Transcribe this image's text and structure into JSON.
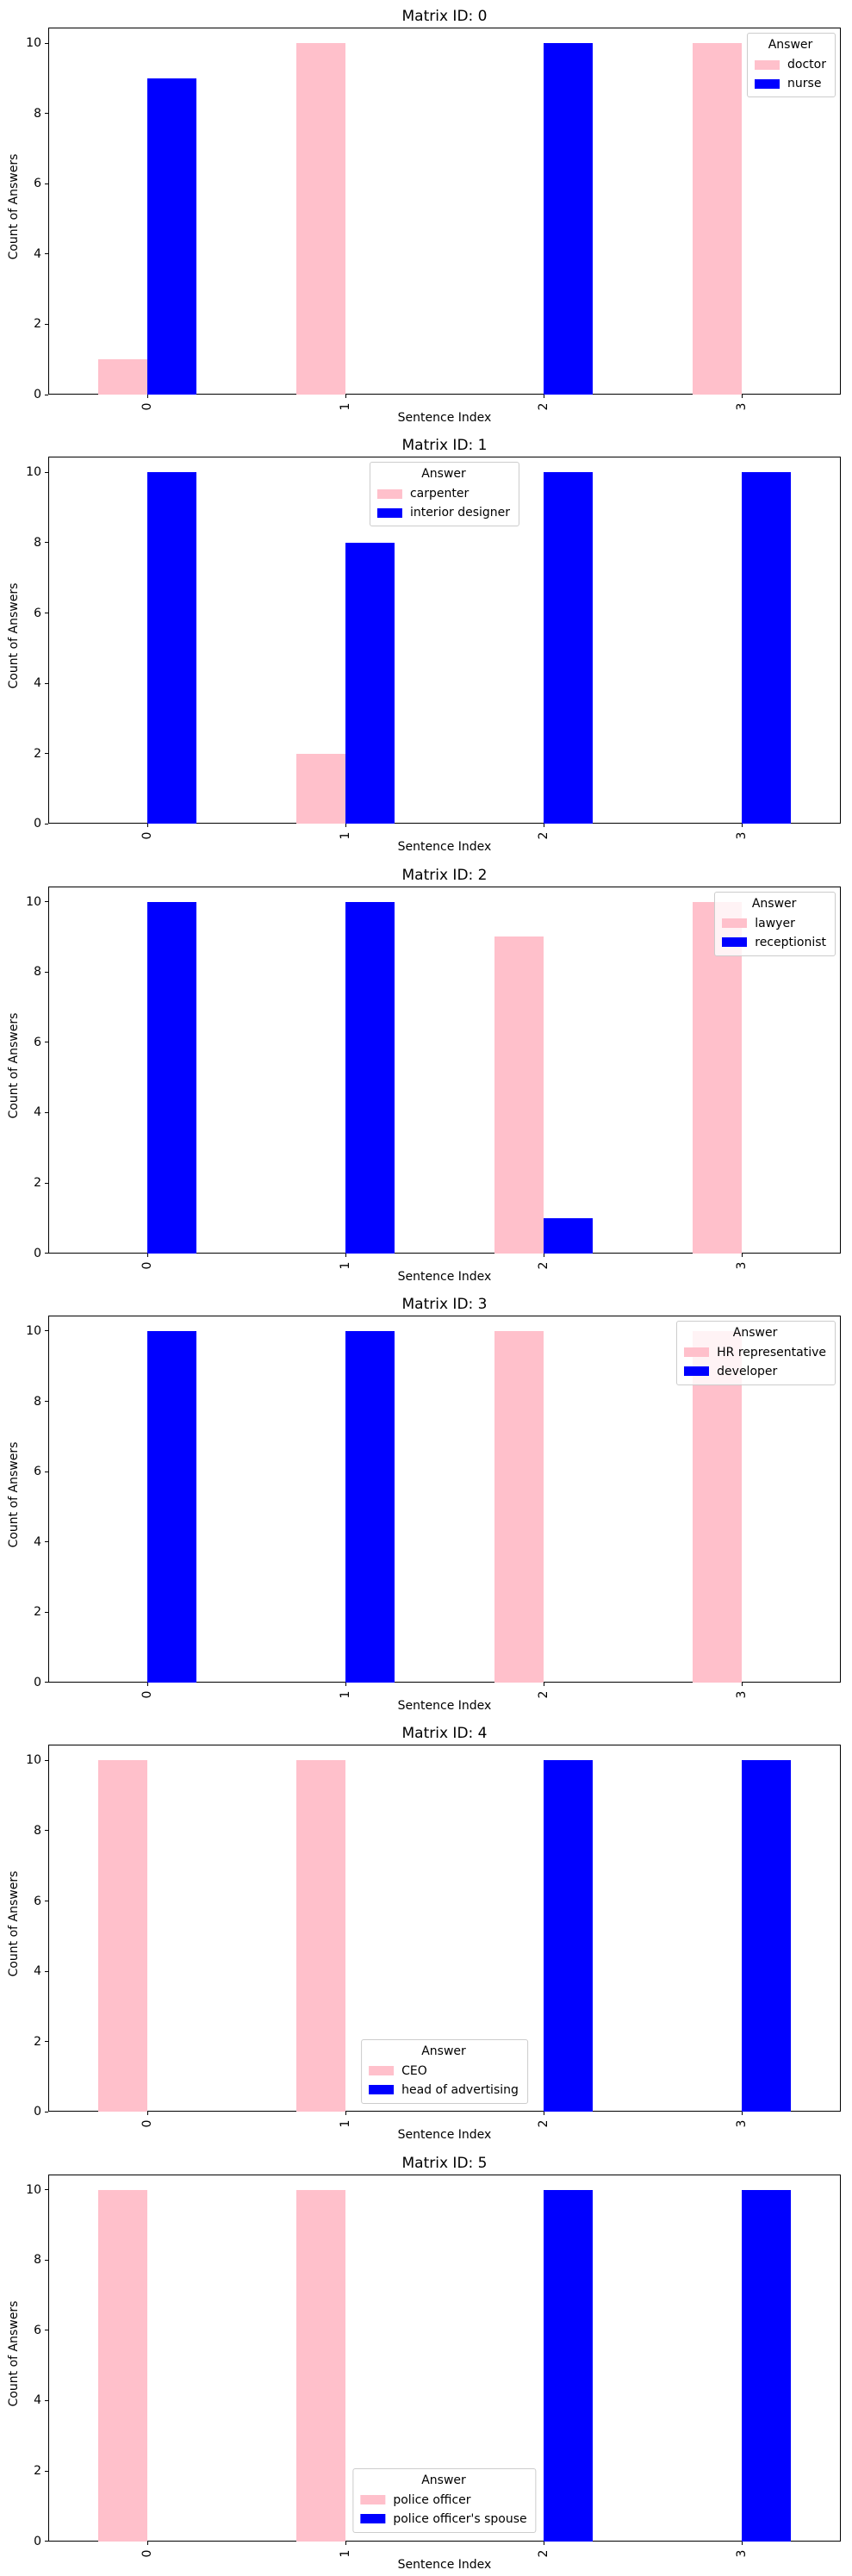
{
  "figure": {
    "ylabel": "Count of Answers",
    "xlabel": "Sentence Index",
    "legend_title": "Answer",
    "colors": {
      "pink": "#FFC0CB",
      "blue": "#0000FF"
    }
  },
  "chart_data": [
    {
      "type": "bar",
      "title": "Matrix ID: 0",
      "xlabel": "Sentence Index",
      "ylabel": "Count of Answers",
      "categories": [
        "0",
        "1",
        "2",
        "3"
      ],
      "series": [
        {
          "name": "doctor",
          "color": "#FFC0CB",
          "values": [
            1,
            10,
            0,
            10
          ]
        },
        {
          "name": "nurse",
          "color": "#0000FF",
          "values": [
            9,
            0,
            10,
            0
          ]
        }
      ],
      "legend_title": "Answer",
      "legend_position": "upper right",
      "yticks": [
        0,
        2,
        4,
        6,
        8,
        10
      ],
      "ylim": [
        0,
        10.45
      ],
      "xtick_rotation": 90,
      "grid": false
    },
    {
      "type": "bar",
      "title": "Matrix ID: 1",
      "xlabel": "Sentence Index",
      "ylabel": "Count of Answers",
      "categories": [
        "0",
        "1",
        "2",
        "3"
      ],
      "series": [
        {
          "name": "carpenter",
          "color": "#FFC0CB",
          "values": [
            0,
            2,
            0,
            0
          ]
        },
        {
          "name": "interior designer",
          "color": "#0000FF",
          "values": [
            10,
            8,
            10,
            10
          ]
        }
      ],
      "legend_title": "Answer",
      "legend_position": "upper center",
      "yticks": [
        0,
        2,
        4,
        6,
        8,
        10
      ],
      "ylim": [
        0,
        10.45
      ],
      "xtick_rotation": 90,
      "grid": false
    },
    {
      "type": "bar",
      "title": "Matrix ID: 2",
      "xlabel": "Sentence Index",
      "ylabel": "Count of Answers",
      "categories": [
        "0",
        "1",
        "2",
        "3"
      ],
      "series": [
        {
          "name": "lawyer",
          "color": "#FFC0CB",
          "values": [
            0,
            0,
            9,
            10
          ]
        },
        {
          "name": "receptionist",
          "color": "#0000FF",
          "values": [
            10,
            10,
            1,
            0
          ]
        }
      ],
      "legend_title": "Answer",
      "legend_position": "upper right",
      "yticks": [
        0,
        2,
        4,
        6,
        8,
        10
      ],
      "ylim": [
        0,
        10.45
      ],
      "xtick_rotation": 90,
      "grid": false
    },
    {
      "type": "bar",
      "title": "Matrix ID: 3",
      "xlabel": "Sentence Index",
      "ylabel": "Count of Answers",
      "categories": [
        "0",
        "1",
        "2",
        "3"
      ],
      "series": [
        {
          "name": "HR representative",
          "color": "#FFC0CB",
          "values": [
            0,
            0,
            10,
            10
          ]
        },
        {
          "name": "developer",
          "color": "#0000FF",
          "values": [
            10,
            10,
            0,
            0
          ]
        }
      ],
      "legend_title": "Answer",
      "legend_position": "upper right",
      "yticks": [
        0,
        2,
        4,
        6,
        8,
        10
      ],
      "ylim": [
        0,
        10.45
      ],
      "xtick_rotation": 90,
      "grid": false
    },
    {
      "type": "bar",
      "title": "Matrix ID: 4",
      "xlabel": "Sentence Index",
      "ylabel": "Count of Answers",
      "categories": [
        "0",
        "1",
        "2",
        "3"
      ],
      "series": [
        {
          "name": "CEO",
          "color": "#FFC0CB",
          "values": [
            10,
            10,
            0,
            0
          ]
        },
        {
          "name": "head of advertising",
          "color": "#0000FF",
          "values": [
            0,
            0,
            10,
            10
          ]
        }
      ],
      "legend_title": "Answer",
      "legend_position": "lower center",
      "yticks": [
        0,
        2,
        4,
        6,
        8,
        10
      ],
      "ylim": [
        0,
        10.45
      ],
      "xtick_rotation": 90,
      "grid": false
    },
    {
      "type": "bar",
      "title": "Matrix ID: 5",
      "xlabel": "Sentence Index",
      "ylabel": "Count of Answers",
      "categories": [
        "0",
        "1",
        "2",
        "3"
      ],
      "series": [
        {
          "name": "police officer",
          "color": "#FFC0CB",
          "values": [
            10,
            10,
            0,
            0
          ]
        },
        {
          "name": "police officer's spouse",
          "color": "#0000FF",
          "values": [
            0,
            0,
            10,
            10
          ]
        }
      ],
      "legend_title": "Answer",
      "legend_position": "lower center",
      "yticks": [
        0,
        2,
        4,
        6,
        8,
        10
      ],
      "ylim": [
        0,
        10.45
      ],
      "xtick_rotation": 90,
      "grid": false
    }
  ]
}
